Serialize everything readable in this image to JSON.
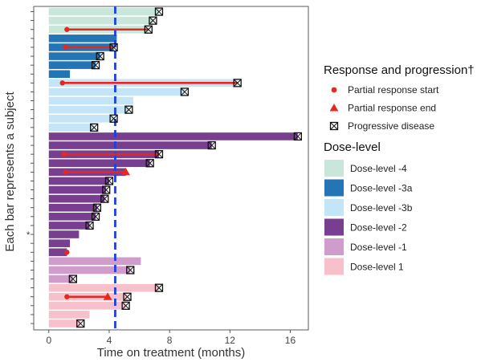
{
  "chart_data": {
    "type": "bar",
    "orientation": "horizontal",
    "title": "",
    "xlabel": "Time on treatment (months)",
    "ylabel": "Each bar represents a subject",
    "xlim": [
      -1,
      17.2
    ],
    "xticks": [
      0,
      4,
      8,
      12,
      16
    ],
    "grid": false,
    "legend_position": "right",
    "reference_line": {
      "x": 4.4,
      "color": "#1f3fe0",
      "style": "dashed"
    },
    "colors": {
      "Dose-level -4": "#c8e6da",
      "Dose-level -3a": "#2375b5",
      "Dose-level -3b": "#c4e4f7",
      "Dose-level -2": "#783f91",
      "Dose-level -1": "#d09ccb",
      "Dose-level 1": "#f7c1cc",
      "marker": "#e8281e",
      "pd_marker": "#111111"
    },
    "subjects": [
      {
        "dose": "Dose-level -4",
        "duration": 7.3,
        "pd": 7.3,
        "pr_start": null,
        "pr_end": null
      },
      {
        "dose": "Dose-level -4",
        "duration": 6.9,
        "pd": 6.9,
        "pr_start": null,
        "pr_end": null
      },
      {
        "dose": "Dose-level -4",
        "duration": 6.6,
        "pd": 6.6,
        "pr_start": 1.2,
        "pr_end": 6.6
      },
      {
        "dose": "Dose-level -3a",
        "duration": 4.5,
        "pd": null,
        "pr_start": null,
        "pr_end": null
      },
      {
        "dose": "Dose-level -3a",
        "duration": 4.3,
        "pd": 4.3,
        "pr_start": 1.1,
        "pr_end": 4.3
      },
      {
        "dose": "Dose-level -3a",
        "duration": 3.4,
        "pd": 3.4,
        "pr_start": null,
        "pr_end": null
      },
      {
        "dose": "Dose-level -3a",
        "duration": 3.1,
        "pd": 3.1,
        "pr_start": null,
        "pr_end": null
      },
      {
        "dose": "Dose-level -3a",
        "duration": 1.4,
        "pd": null,
        "pr_start": null,
        "pr_end": null
      },
      {
        "dose": "Dose-level -3b",
        "duration": 12.5,
        "pd": 12.5,
        "pr_start": 0.9,
        "pr_end": 12.5
      },
      {
        "dose": "Dose-level -3b",
        "duration": 9.0,
        "pd": 9.0,
        "pr_start": null,
        "pr_end": null
      },
      {
        "dose": "Dose-level -3b",
        "duration": 5.6,
        "pd": null,
        "pr_start": null,
        "pr_end": null
      },
      {
        "dose": "Dose-level -3b",
        "duration": 5.3,
        "pd": 5.3,
        "pr_start": null,
        "pr_end": null
      },
      {
        "dose": "Dose-level -3b",
        "duration": 4.3,
        "pd": 4.3,
        "pr_start": null,
        "pr_end": null
      },
      {
        "dose": "Dose-level -3b",
        "duration": 3.0,
        "pd": 3.0,
        "pr_start": null,
        "pr_end": null
      },
      {
        "dose": "Dose-level -2",
        "duration": 16.5,
        "pd": 16.5,
        "pr_start": null,
        "pr_end": null
      },
      {
        "dose": "Dose-level -2",
        "duration": 10.8,
        "pd": 10.8,
        "pr_start": null,
        "pr_end": null
      },
      {
        "dose": "Dose-level -2",
        "duration": 7.3,
        "pd": 7.3,
        "pr_start": 1.0,
        "pr_end": 7.3
      },
      {
        "dose": "Dose-level -2",
        "duration": 6.7,
        "pd": 6.7,
        "pr_start": null,
        "pr_end": null
      },
      {
        "dose": "Dose-level -2",
        "duration": 5.1,
        "pd": null,
        "pr_start": 1.1,
        "pr_end": 5.1
      },
      {
        "dose": "Dose-level -2",
        "duration": 4.0,
        "pd": 4.0,
        "pr_start": null,
        "pr_end": null
      },
      {
        "dose": "Dose-level -2",
        "duration": 3.8,
        "pd": 3.8,
        "pr_start": null,
        "pr_end": null
      },
      {
        "dose": "Dose-level -2",
        "duration": 3.7,
        "pd": 3.7,
        "pr_start": null,
        "pr_end": null
      },
      {
        "dose": "Dose-level -2",
        "duration": 3.2,
        "pd": 3.2,
        "pr_start": null,
        "pr_end": null
      },
      {
        "dose": "Dose-level -2",
        "duration": 3.1,
        "pd": 3.1,
        "pr_start": null,
        "pr_end": null
      },
      {
        "dose": "Dose-level -2",
        "duration": 2.7,
        "pd": 2.7,
        "pr_start": null,
        "pr_end": null
      },
      {
        "dose": "Dose-level -2",
        "duration": 2.0,
        "pd": null,
        "pr_start": null,
        "pr_end": null,
        "marker_label": "*"
      },
      {
        "dose": "Dose-level -2",
        "duration": 1.4,
        "pd": null,
        "pr_start": null,
        "pr_end": null
      },
      {
        "dose": "Dose-level -2",
        "duration": 1.2,
        "pd": null,
        "pr_start": 1.2,
        "pr_end": null
      },
      {
        "dose": "Dose-level -1",
        "duration": 6.1,
        "pd": null,
        "pr_start": null,
        "pr_end": null
      },
      {
        "dose": "Dose-level -1",
        "duration": 5.4,
        "pd": 5.4,
        "pr_start": null,
        "pr_end": null
      },
      {
        "dose": "Dose-level -1",
        "duration": 1.6,
        "pd": 1.6,
        "pr_start": null,
        "pr_end": null
      },
      {
        "dose": "Dose-level 1",
        "duration": 7.3,
        "pd": 7.3,
        "pr_start": null,
        "pr_end": null
      },
      {
        "dose": "Dose-level 1",
        "duration": 5.2,
        "pd": 5.2,
        "pr_start": 1.2,
        "pr_end": 3.9
      },
      {
        "dose": "Dose-level 1",
        "duration": 5.1,
        "pd": 5.1,
        "pr_start": null,
        "pr_end": null
      },
      {
        "dose": "Dose-level 1",
        "duration": 2.7,
        "pd": null,
        "pr_start": null,
        "pr_end": null
      },
      {
        "dose": "Dose-level 1",
        "duration": 2.1,
        "pd": 2.1,
        "pr_start": null,
        "pr_end": null
      }
    ],
    "legend": {
      "response_title": "Response and progression†",
      "response_items": [
        {
          "shape": "circle",
          "label": "Partial response start"
        },
        {
          "shape": "triangle",
          "label": "Partial response end"
        },
        {
          "shape": "boxed-x",
          "label": "Progressive disease"
        }
      ],
      "dose_title": "Dose-level",
      "dose_items": [
        {
          "label": "Dose-level -4",
          "color": "#c8e6da"
        },
        {
          "label": "Dose-level -3a",
          "color": "#2375b5"
        },
        {
          "label": "Dose-level -3b",
          "color": "#c4e4f7"
        },
        {
          "label": "Dose-level -2",
          "color": "#783f91"
        },
        {
          "label": "Dose-level -1",
          "color": "#d09ccb"
        },
        {
          "label": "Dose-level 1",
          "color": "#f7c1cc"
        }
      ]
    }
  }
}
